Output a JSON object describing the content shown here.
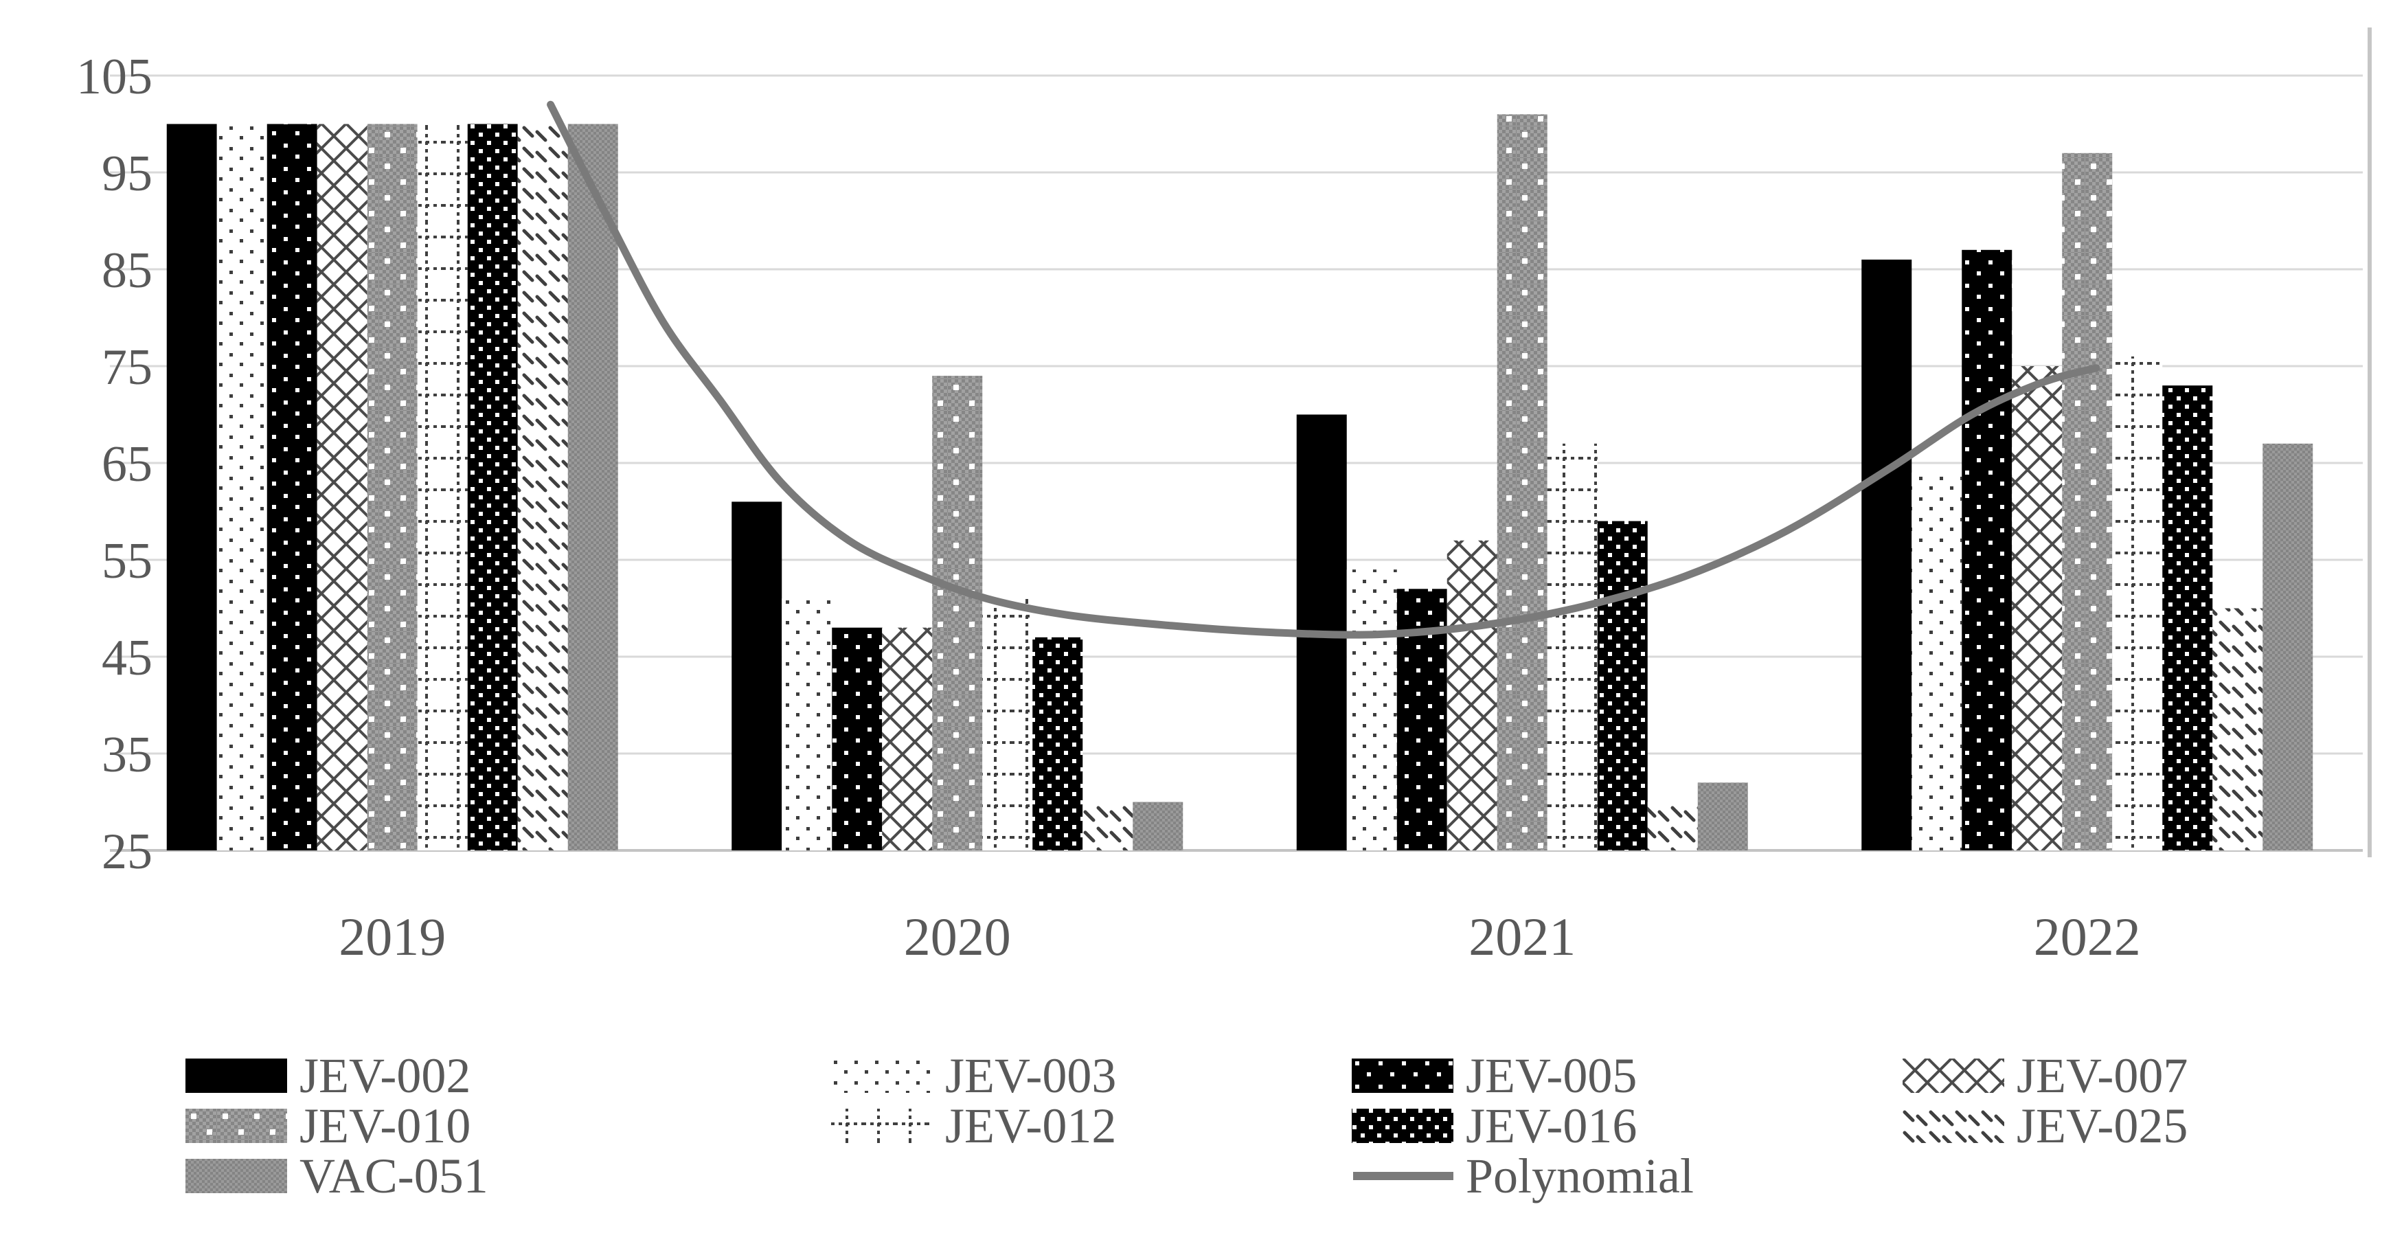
{
  "chart_data": {
    "type": "bar",
    "title": "",
    "categories": [
      "2019",
      "2020",
      "2021",
      "2022"
    ],
    "series": [
      {
        "name": "JEV-002",
        "pattern": "solid-black",
        "values": [
          100,
          61,
          70,
          86
        ]
      },
      {
        "name": "JEV-003",
        "pattern": "light-dots",
        "values": [
          100,
          51,
          54,
          64
        ]
      },
      {
        "name": "JEV-005",
        "pattern": "black-white-dots",
        "values": [
          100,
          48,
          52,
          87
        ]
      },
      {
        "name": "JEV-007",
        "pattern": "diag-cross",
        "values": [
          100,
          48,
          57,
          75
        ]
      },
      {
        "name": "JEV-010",
        "pattern": "gray-dotted",
        "values": [
          100,
          74,
          101,
          97
        ]
      },
      {
        "name": "JEV-012",
        "pattern": "dashed-grid",
        "values": [
          100,
          51,
          67,
          76
        ]
      },
      {
        "name": "JEV-016",
        "pattern": "dark-checker",
        "values": [
          100,
          47,
          59,
          73
        ]
      },
      {
        "name": "JEV-025",
        "pattern": "diag-ticks",
        "values": [
          100,
          30,
          30,
          50
        ]
      },
      {
        "name": "VAC-051",
        "pattern": "gray-fine",
        "values": [
          100,
          30,
          32,
          67
        ]
      }
    ],
    "trendline": {
      "name": "Polynomial",
      "points": [
        [
          0.195,
          102
        ],
        [
          0.221,
          90
        ],
        [
          0.245,
          79.5
        ],
        [
          0.27,
          71.5
        ],
        [
          0.297,
          63
        ],
        [
          0.327,
          57
        ],
        [
          0.358,
          53.5
        ],
        [
          0.388,
          51
        ],
        [
          0.424,
          49.3
        ],
        [
          0.47,
          48.2
        ],
        [
          0.515,
          47.5
        ],
        [
          0.561,
          47.3
        ],
        [
          0.606,
          48.2
        ],
        [
          0.652,
          50.2
        ],
        [
          0.697,
          53.3
        ],
        [
          0.742,
          58
        ],
        [
          0.788,
          64.5
        ],
        [
          0.824,
          70
        ],
        [
          0.855,
          73.3
        ],
        [
          0.879,
          74.8
        ]
      ]
    },
    "ylim": [
      25,
      105
    ],
    "yticks": [
      105,
      95,
      85,
      75,
      65,
      55,
      45,
      35,
      25
    ],
    "grid": true,
    "legend_position": "bottom",
    "xlabel": "",
    "ylabel": ""
  },
  "legend": {
    "rows": [
      [
        "JEV-002",
        "JEV-003",
        "JEV-005",
        "JEV-007"
      ],
      [
        "JEV-010",
        "JEV-012",
        "JEV-016",
        "JEV-025"
      ],
      [
        "VAC-051",
        "",
        "Polynomial",
        ""
      ]
    ]
  },
  "colors": {
    "bar_black": "#000000",
    "pattern_ink": "#3f3f3f",
    "gray_bar": "#9a9a9a",
    "trendline": "#7a7a7a",
    "gridline": "#d9d9d9",
    "axis_line": "#c3c3c3",
    "plot_right_border": "#c6c6c6",
    "text": "#595959",
    "background": "#ffffff"
  }
}
